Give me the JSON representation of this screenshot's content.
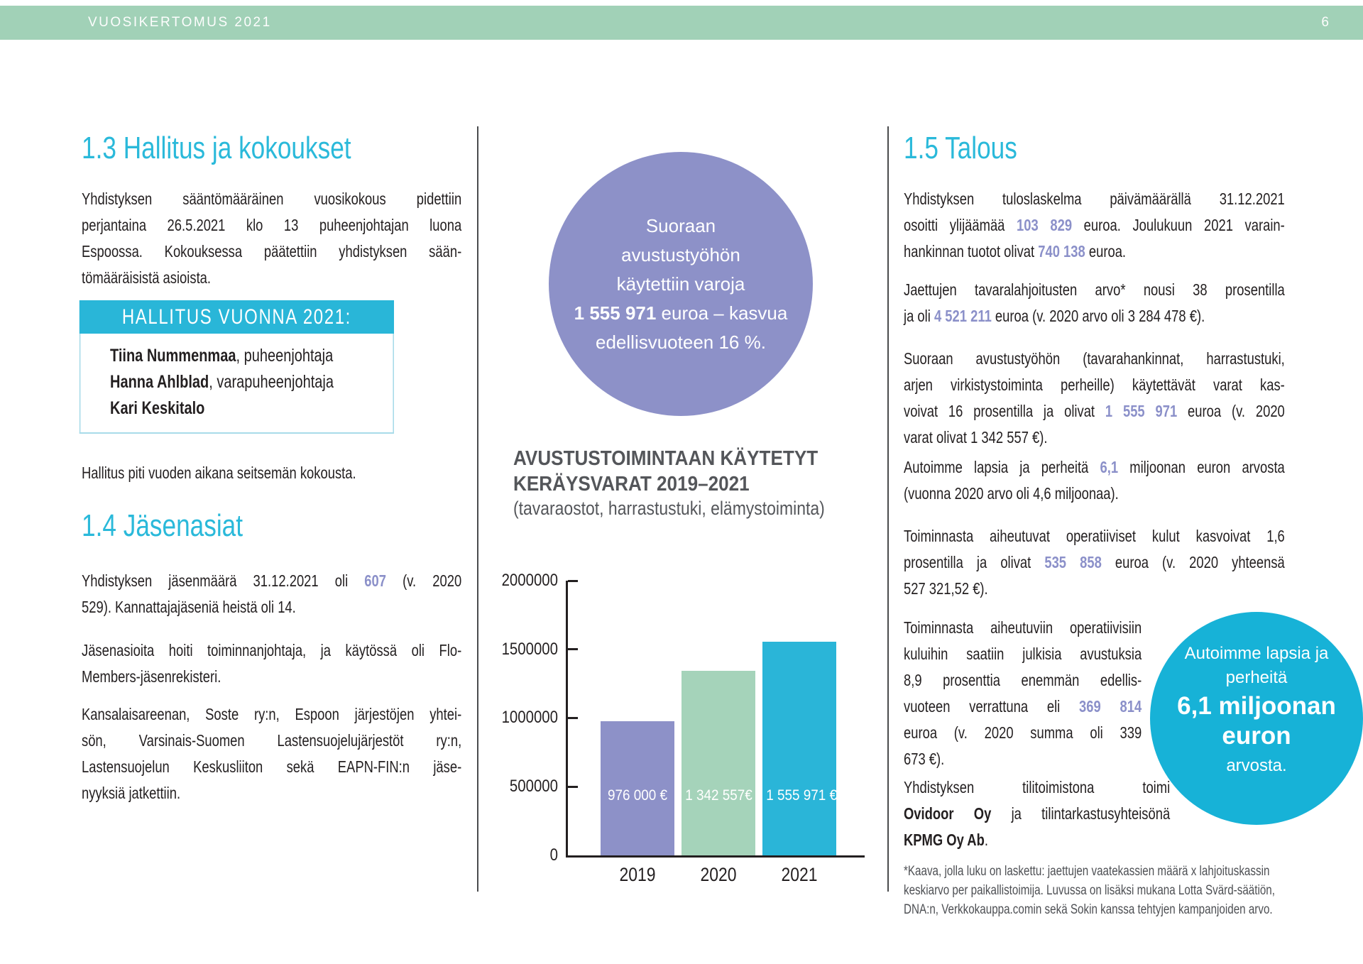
{
  "header": {
    "title": "VUOSIKERTOMUS 2021",
    "page_number": "6"
  },
  "colors": {
    "header_green": "#a1d1b7",
    "heading_cyan": "#2ab9da",
    "accent_purple": "#8b90c9",
    "box_header_cyan": "#29b6d8",
    "purple_circle": "#8d91c8",
    "cyan_circle": "#17b2d7"
  },
  "left": {
    "heading13": "1.3 Hallitus ja kokoukset",
    "p1": [
      "Yhdistyksen sääntömääräinen vuosikokous pidettiin",
      "perjantaina 26.5.2021 klo 13 puheenjohtajan luona",
      "Espoossa. Kokouksessa päätettiin yhdistyksen sään-",
      "tömääräisistä asioista."
    ],
    "box": {
      "header": "HALLITUS VUONNA 2021:",
      "members": [
        [
          {
            "t": "Tiina Nummenmaa",
            "s": "b"
          },
          {
            "t": ", puheenjohtaja"
          }
        ],
        [
          {
            "t": "Hanna Ahlblad",
            "s": "b"
          },
          {
            "t": ", varapuheenjohtaja"
          }
        ],
        [
          {
            "t": "Kari Keskitalo",
            "s": "b"
          }
        ]
      ]
    },
    "p2": [
      "Hallitus piti vuoden aikana seitsemän kokousta."
    ],
    "heading14": "1.4 Jäsenasiat",
    "p3": [
      [
        {
          "t": "Yhdistyksen jäsenmäärä 31.12.2021 oli "
        },
        {
          "t": "607",
          "s": "a"
        },
        {
          "t": " (v. 2020"
        }
      ],
      "529). Kannattajajäseniä heistä oli 14."
    ],
    "p4": [
      "Jäsenasioita hoiti toiminnanjohtaja, ja käytössä oli Flo-",
      "Members-jäsenrekisteri."
    ],
    "p5": [
      "Kansalaisareenan, Soste ry:n, Espoon järjestöjen yhtei-",
      "sön, Varsinais-Suomen Lastensuojelujärjestöt ry:n,",
      "Lastensuojelun Keskusliiton sekä EAPN-FIN:n jäse-",
      "nyyksiä jatkettiin."
    ]
  },
  "middle": {
    "circle_lines": [
      "Suoraan",
      "avustustyöhön",
      "käytettiin varoja",
      [
        {
          "t": "1 555 971",
          "s": "b"
        },
        {
          "t": " euroa – kasvua"
        }
      ],
      "edellisvuoteen 16 %."
    ]
  },
  "chart_data": {
    "type": "bar",
    "title_lines": [
      "AVUSTUSTOIMINTAAN KÄYTETYT",
      "KERÄYSVARAT 2019–2021"
    ],
    "title": "AVUSTUSTOIMINTAAN KÄYTETYT KERÄYSVARAT 2019–2021",
    "subtitle": "(tavaraostot, harrastustuki, elämystoiminta)",
    "categories": [
      "2019",
      "2020",
      "2021"
    ],
    "values": [
      976000,
      1342557,
      1555971
    ],
    "bar_labels": [
      "976 000 €",
      "1 342 557€",
      "1 555 971 €"
    ],
    "colors": [
      "#8d91c8",
      "#a5d3ba",
      "#2ab5d8"
    ],
    "ylim": [
      0,
      2000000
    ],
    "yticks": [
      "2000000",
      "1500000",
      "1000000",
      "500000",
      "0"
    ],
    "grid": false,
    "legend": false,
    "xlabel": "",
    "ylabel": ""
  },
  "right": {
    "heading15": "1.5 Talous",
    "p1": [
      "Yhdistyksen tuloslaskelma päivämäärällä 31.12.2021",
      [
        {
          "t": "osoitti ylijäämää "
        },
        {
          "t": "103 829",
          "s": "a"
        },
        {
          "t": " euroa. Joulukuun 2021 varain-"
        }
      ],
      [
        {
          "t": "hankinnan tuotot olivat "
        },
        {
          "t": "740 138",
          "s": "a"
        },
        {
          "t": " euroa."
        }
      ]
    ],
    "p2": [
      "Jaettujen tavaralahjoitusten arvo* nousi 38 prosentilla",
      [
        {
          "t": "ja oli "
        },
        {
          "t": "4 521 211",
          "s": "a"
        },
        {
          "t": " euroa (v. 2020 arvo oli 3 284 478 €)."
        }
      ]
    ],
    "p3": [
      "Suoraan avustustyöhön (tavarahankinnat, harrastustuki,",
      "arjen virkistystoiminta perheille) käytettävät varat kas-",
      [
        {
          "t": "voivat 16 prosentilla ja olivat "
        },
        {
          "t": "1 555 971",
          "s": "a"
        },
        {
          "t": " euroa (v. 2020"
        }
      ],
      "varat olivat 1 342 557 €)."
    ],
    "p4": [
      [
        {
          "t": "Autoimme lapsia ja perheitä "
        },
        {
          "t": "6,1",
          "s": "a"
        },
        {
          "t": " miljoonan euron arvosta"
        }
      ],
      "(vuonna 2020 arvo oli 4,6 miljoonaa)."
    ],
    "p5": [
      "Toiminnasta aiheutuvat operatiiviset kulut kasvoivat 1,6",
      [
        {
          "t": "prosentilla ja olivat "
        },
        {
          "t": "535 858",
          "s": "a"
        },
        {
          "t": " euroa (v. 2020 yhteensä"
        }
      ],
      "527 321,52 €)."
    ],
    "p6": [
      "Toiminnasta aiheutuviin operatiivisiin",
      "kuluihin saatiin julkisia avustuksia",
      "8,9 prosenttia enemmän edellis-",
      [
        {
          "t": "vuoteen verrattuna eli "
        },
        {
          "t": "369 814",
          "s": "a"
        }
      ],
      "euroa (v. 2020 summa oli 339",
      "673 €)."
    ],
    "p7": [
      "Yhdistyksen tilitoimistona toimi",
      [
        {
          "t": "Ovidoor Oy",
          "s": "b"
        },
        {
          "t": " ja tilintarkastusyhteisönä"
        }
      ],
      [
        {
          "t": "KPMG Oy Ab",
          "s": "b"
        },
        {
          "t": "."
        }
      ]
    ],
    "footnote": [
      "*Kaava, jolla luku on laskettu: jaettujen vaatekassien määrä x lahjoituskassin",
      "keskiarvo per paikallistoimija. Luvussa on lisäksi mukana Lotta Svärd-säätiön,",
      "DNA:n, Verkkokauppa.comin sekä Sokin kanssa tehtyjen kampanjoiden arvo."
    ],
    "circle": {
      "small1": "Autoimme lapsia ja",
      "small2": "perheitä",
      "big1": "6,1 miljoonan",
      "big2": "euron",
      "small3": "arvosta."
    }
  }
}
